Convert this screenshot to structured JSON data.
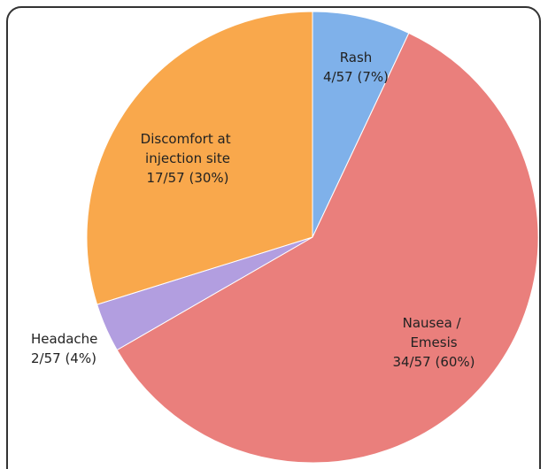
{
  "chart_data": {
    "type": "pie",
    "categories": [
      "Rash",
      "Nausea / Emesis",
      "Headache",
      "Discomfort at injection site"
    ],
    "values": [
      4,
      34,
      2,
      17
    ],
    "value_labels": [
      "4/57 (7%)",
      "34/57 (60%)",
      "2/57 (4%)",
      "17/57 (30%)"
    ],
    "colors": [
      "#7fb1ea",
      "#ea7f7c",
      "#b29ee0",
      "#f9a84c"
    ]
  }
}
